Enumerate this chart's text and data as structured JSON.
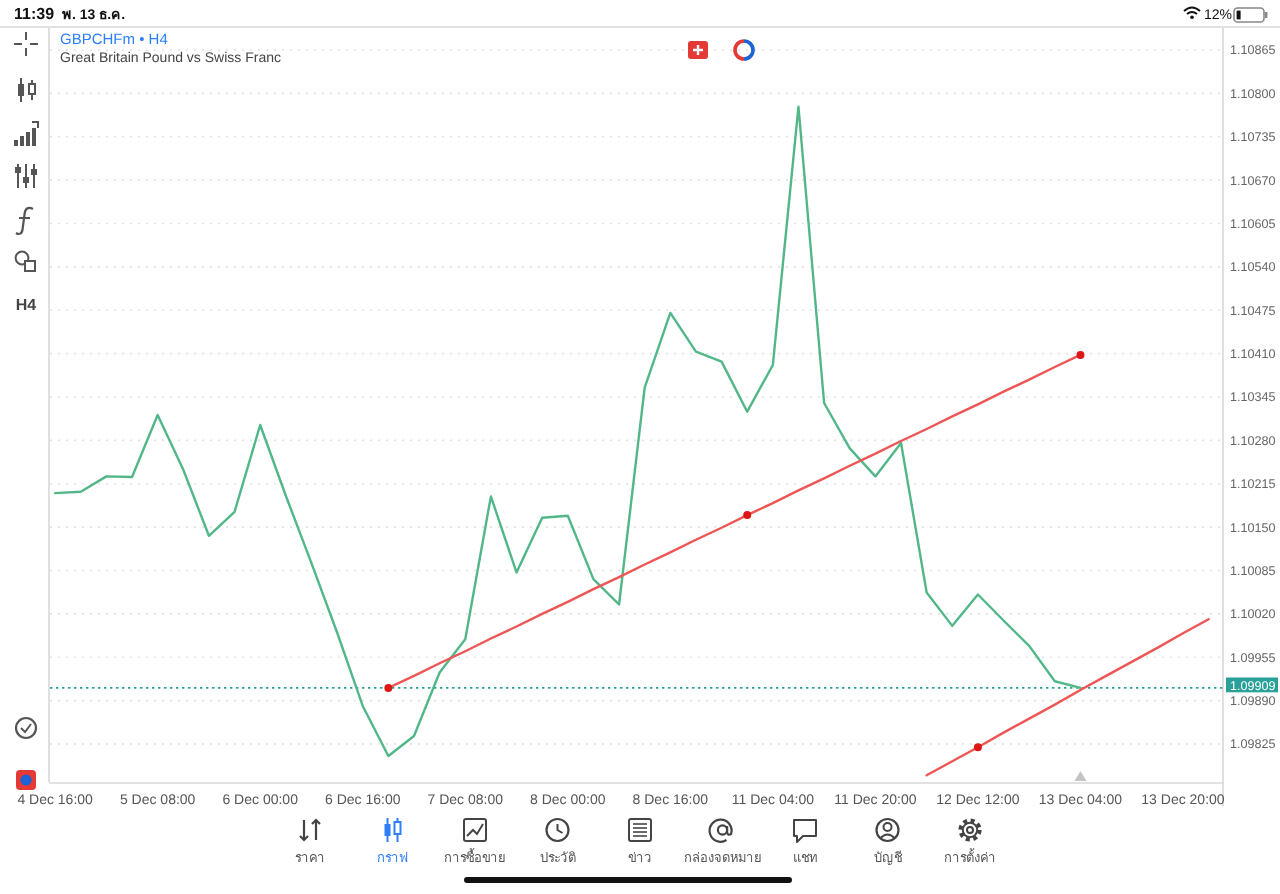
{
  "chart_data": {
    "type": "line",
    "title": "GBPCHFm • H4",
    "subtitle": "Great Britain Pound vs Swiss Franc",
    "annotations": [
      "11:39",
      "พ. 13 ธ.ค.",
      "12%",
      "H4",
      "ราคา",
      "กราฟ",
      "การซื้อขาย",
      "ประวัติ",
      "ข่าว",
      "กล่องจดหมาย",
      "แชท",
      "บัญชี",
      "การตั้งค่า"
    ],
    "categories": [
      "4 Dec 16:00",
      null,
      null,
      null,
      "5 Dec 08:00",
      null,
      null,
      null,
      "6 Dec 00:00",
      null,
      null,
      null,
      "6 Dec 16:00",
      null,
      null,
      null,
      "7 Dec 08:00",
      null,
      null,
      null,
      "8 Dec 00:00",
      null,
      null,
      null,
      "8 Dec 16:00",
      null,
      null,
      null,
      "11 Dec 04:00",
      null,
      null,
      null,
      "11 Dec 20:00",
      null,
      null,
      null,
      "12 Dec 12:00",
      null,
      null,
      null,
      "13 Dec 04:00",
      null,
      null,
      null,
      "13 Dec 20:00",
      null
    ],
    "series": [
      {
        "color": "#52b788",
        "values": [
          1.10201,
          1.10203,
          1.10226,
          1.10225,
          1.10318,
          1.10236,
          1.10137,
          1.10173,
          1.10303,
          1.10197,
          1.10096,
          1.09992,
          1.09882,
          1.09807,
          1.09837,
          1.09932,
          1.09982,
          1.10196,
          1.10082,
          1.10164,
          1.10167,
          1.10072,
          1.10034,
          1.10359,
          1.10471,
          1.10413,
          1.10398,
          1.10323,
          1.10393,
          1.1078,
          1.10336,
          1.10268,
          1.10226,
          1.10276,
          1.10052,
          1.10002,
          1.10049,
          1.1001,
          1.09972,
          1.09919,
          1.09909,
          null,
          null,
          null,
          null,
          null
        ]
      },
      {
        "type": "line",
        "color": "#ee5555",
        "values": [
          null,
          null,
          null,
          null,
          null,
          null,
          null,
          null,
          null,
          null,
          null,
          null,
          null,
          1.09909,
          1.09927,
          1.09946,
          1.09964,
          1.09983,
          1.10001,
          1.1002,
          1.10038,
          1.10057,
          1.10075,
          1.10094,
          1.10112,
          1.10131,
          1.10149,
          1.10168,
          1.10186,
          1.10205,
          1.10223,
          1.10242,
          1.1026,
          1.10279,
          1.10297,
          1.10316,
          1.10334,
          1.10353,
          1.10371,
          1.1039,
          1.10408,
          null,
          null,
          null,
          null,
          null
        ]
      },
      {
        "type": "line",
        "color": "#ee5555",
        "values": [
          null,
          null,
          null,
          null,
          null,
          null,
          null,
          null,
          null,
          null,
          null,
          null,
          null,
          null,
          null,
          null,
          null,
          null,
          null,
          null,
          null,
          null,
          null,
          null,
          null,
          null,
          null,
          null,
          null,
          null,
          null,
          null,
          null,
          null,
          1.09778,
          1.09799,
          1.0982,
          1.09842,
          1.09863,
          1.09884,
          1.09906,
          1.09927,
          1.09948,
          1.09969,
          1.09991,
          1.10012
        ]
      },
      {
        "type": "scatter",
        "color": "#dd1616",
        "marker": "circle",
        "values": [
          null,
          null,
          null,
          null,
          null,
          null,
          null,
          null,
          null,
          null,
          null,
          null,
          null,
          1.09909,
          null,
          null,
          null,
          null,
          null,
          null,
          null,
          null,
          null,
          null,
          null,
          null,
          null,
          1.10168,
          null,
          null,
          null,
          null,
          null,
          null,
          null,
          null,
          1.0982,
          null,
          null,
          null,
          1.10408,
          null,
          null,
          null,
          null,
          null
        ]
      }
    ],
    "ylim": [
      1.09768,
      1.10898
    ],
    "yticks": [
      1.10865,
      {
        "value": 1.108,
        "label": "1.10800"
      },
      1.10735,
      {
        "value": 1.1067,
        "label": "1.10670"
      },
      1.10605,
      {
        "value": 1.1054,
        "label": "1.10540"
      },
      1.10475,
      {
        "value": 1.1041,
        "label": "1.10410"
      },
      1.10345,
      {
        "value": 1.1028,
        "label": "1.10280"
      },
      1.10215,
      {
        "value": 1.1015,
        "label": "1.10150"
      },
      1.10085,
      {
        "value": 1.1002,
        "label": "1.10020"
      },
      1.09955,
      {
        "value": 1.0989,
        "label": "1.09890"
      },
      1.09825
    ],
    "ref_lines": [
      {
        "axis": "y",
        "value": 1.09909,
        "label": "1.09909",
        "color": "#2aa198",
        "line_style": "dotted"
      }
    ],
    "grid": "y"
  }
}
